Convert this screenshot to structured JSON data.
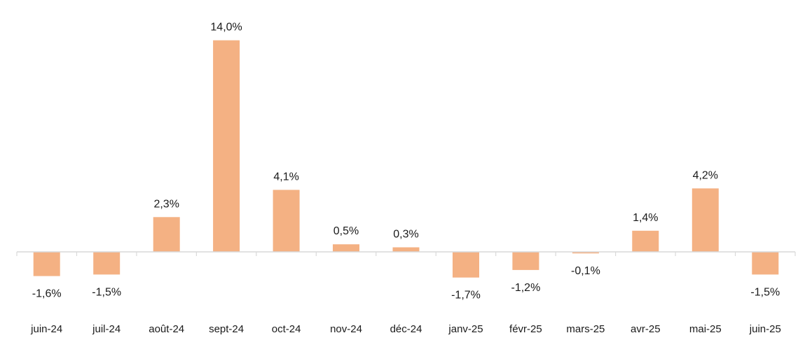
{
  "chart_data": {
    "type": "bar",
    "title": "",
    "xlabel": "",
    "ylabel": "",
    "categories": [
      "juin-24",
      "juil-24",
      "août-24",
      "sept-24",
      "oct-24",
      "nov-24",
      "déc-24",
      "janv-25",
      "févr-25",
      "mars-25",
      "avr-25",
      "mai-25",
      "juin-25"
    ],
    "values": [
      -1.6,
      -1.5,
      2.3,
      14.0,
      4.1,
      0.5,
      0.3,
      -1.7,
      -1.2,
      -0.1,
      1.4,
      4.2,
      -1.5
    ],
    "labels": [
      "-1,6%",
      "-1,5%",
      "2,3%",
      "14,0%",
      "4,1%",
      "0,5%",
      "0,3%",
      "-1,7%",
      "-1,2%",
      "-0,1%",
      "1,4%",
      "4,2%",
      "-1,5%"
    ],
    "ylim": [
      -2,
      14
    ],
    "grid": false,
    "legend": "none",
    "colors": {
      "bar": "#f4b183",
      "axis": "#d9d9d9",
      "text": "#1a1a1a"
    }
  }
}
